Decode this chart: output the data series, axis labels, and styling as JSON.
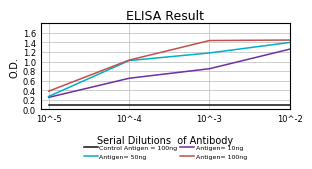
{
  "title": "ELISA Result",
  "ylabel": "O.D.",
  "xlabel": "Serial Dilutions  of Antibody",
  "x_values": [
    0.01,
    0.001,
    0.0001,
    1e-05
  ],
  "lines": [
    {
      "label": "Control Antigen = 100ng",
      "color": "#111111",
      "y": [
        0.1,
        0.1,
        0.1,
        0.1
      ]
    },
    {
      "label": "Antigen= 10ng",
      "color": "#7030a0",
      "y": [
        1.26,
        0.85,
        0.65,
        0.25
      ]
    },
    {
      "label": "Antigen= 50ng",
      "color": "#00b0c8",
      "y": [
        1.4,
        1.18,
        1.02,
        0.27
      ]
    },
    {
      "label": "Antigen= 100ng",
      "color": "#c0504d",
      "y": [
        1.45,
        1.44,
        1.03,
        0.38
      ]
    }
  ],
  "ylim": [
    0,
    1.8
  ],
  "yticks": [
    0,
    0.2,
    0.4,
    0.6,
    0.8,
    1.0,
    1.2,
    1.4,
    1.6
  ],
  "xtick_labels": [
    "10^-2",
    "10^-3",
    "10^-4",
    "10^-5"
  ],
  "background_color": "#ffffff",
  "grid_color": "#bbbbbb"
}
